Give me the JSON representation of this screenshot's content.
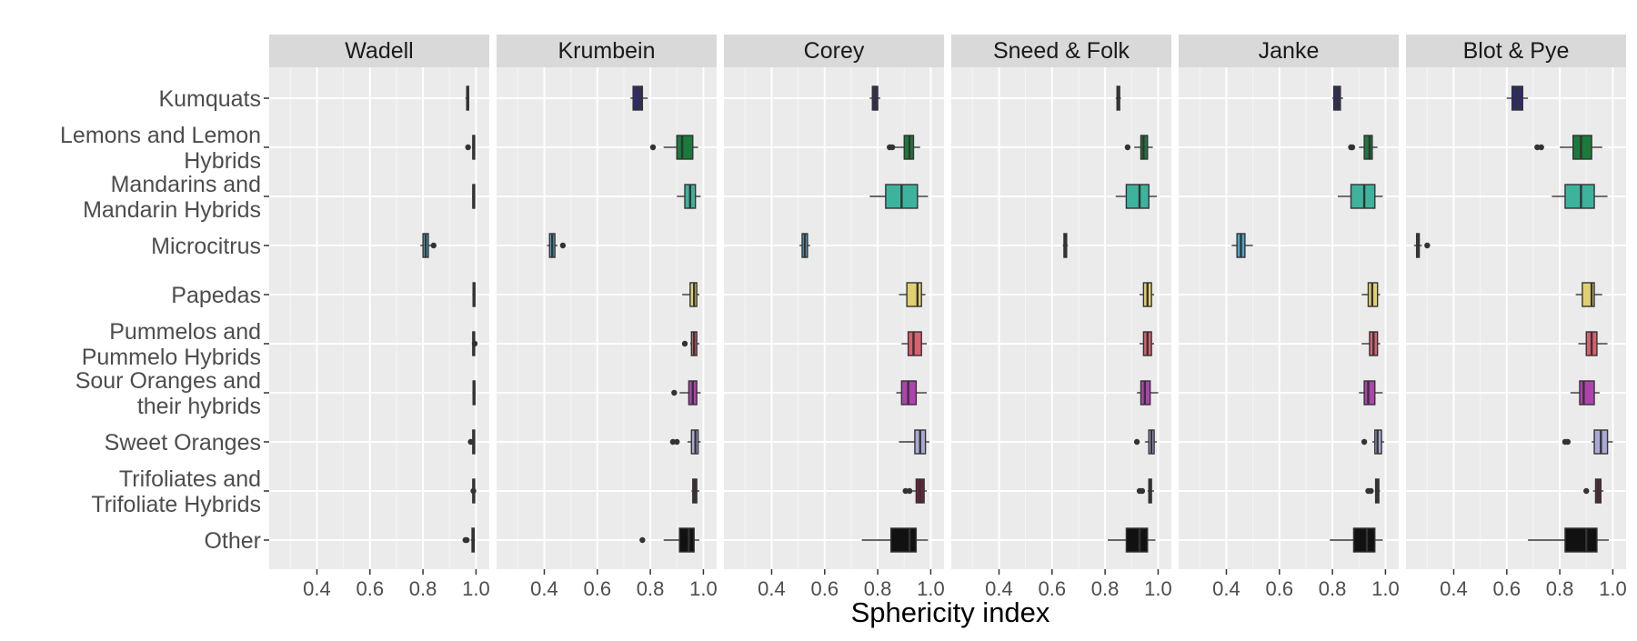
{
  "chart_data": {
    "type": "boxplot",
    "xlabel": "Sphericity index",
    "ylabel": "",
    "xlim": [
      0.22,
      1.05
    ],
    "x_ticks": [
      0.4,
      0.6,
      0.8,
      1.0
    ],
    "x_tick_labels": [
      "0.4",
      "0.6",
      "0.8",
      "1.0"
    ],
    "grid": true,
    "legend": "none",
    "facets": [
      "Wadell",
      "Krumbein",
      "Corey",
      "Sneed & Folk",
      "Janke",
      "Blot & Pye"
    ],
    "categories": [
      "Kumquats",
      "Lemons and Lemon\nHybrids",
      "Mandarins and\nMandarin Hybrids",
      "Microcitrus",
      "Papedas",
      "Pummelos and\nPummelo Hybrids",
      "Sour Oranges and\ntheir hybrids",
      "Sweet Oranges",
      "Trifoliates and\nTrifoliate Hybrids",
      "Other"
    ],
    "category_colors": [
      "#2d2b6b",
      "#1a7a3a",
      "#3db39e",
      "#4ea6c4",
      "#e2d070",
      "#d9606e",
      "#b042b0",
      "#a9a9d6",
      "#6e1f3c",
      "#111111"
    ],
    "panels": [
      {
        "name": "Wadell",
        "boxes": [
          {
            "min": 0.96,
            "q1": 0.965,
            "median": 0.968,
            "q3": 0.972,
            "max": 0.975,
            "outliers": []
          },
          {
            "min": 0.985,
            "q1": 0.988,
            "median": 0.99,
            "q3": 0.993,
            "max": 0.996,
            "outliers": [
              0.97
            ]
          },
          {
            "min": 0.985,
            "q1": 0.988,
            "median": 0.99,
            "q3": 0.993,
            "max": 0.996,
            "outliers": []
          },
          {
            "min": 0.79,
            "q1": 0.8,
            "median": 0.81,
            "q3": 0.82,
            "max": 0.83,
            "outliers": [
              0.84
            ]
          },
          {
            "min": 0.986,
            "q1": 0.989,
            "median": 0.991,
            "q3": 0.993,
            "max": 0.995,
            "outliers": []
          },
          {
            "min": 0.985,
            "q1": 0.988,
            "median": 0.99,
            "q3": 0.993,
            "max": 0.996,
            "outliers": [
              0.995
            ]
          },
          {
            "min": 0.986,
            "q1": 0.989,
            "median": 0.991,
            "q3": 0.993,
            "max": 0.995,
            "outliers": []
          },
          {
            "min": 0.985,
            "q1": 0.988,
            "median": 0.99,
            "q3": 0.993,
            "max": 0.996,
            "outliers": [
              0.98
            ]
          },
          {
            "min": 0.985,
            "q1": 0.988,
            "median": 0.99,
            "q3": 0.993,
            "max": 0.996,
            "outliers": [
              0.99
            ]
          },
          {
            "min": 0.98,
            "q1": 0.985,
            "median": 0.99,
            "q3": 0.993,
            "max": 0.996,
            "outliers": [
              0.96,
              0.965
            ]
          }
        ]
      },
      {
        "name": "Krumbein",
        "boxes": [
          {
            "min": 0.725,
            "q1": 0.735,
            "median": 0.76,
            "q3": 0.77,
            "max": 0.79,
            "outliers": []
          },
          {
            "min": 0.85,
            "q1": 0.9,
            "median": 0.92,
            "q3": 0.96,
            "max": 0.98,
            "outliers": [
              0.81
            ]
          },
          {
            "min": 0.9,
            "q1": 0.93,
            "median": 0.95,
            "q3": 0.97,
            "max": 0.99,
            "outliers": []
          },
          {
            "min": 0.41,
            "q1": 0.42,
            "median": 0.43,
            "q3": 0.44,
            "max": 0.45,
            "outliers": [
              0.47
            ]
          },
          {
            "min": 0.92,
            "q1": 0.95,
            "median": 0.965,
            "q3": 0.975,
            "max": 0.985,
            "outliers": []
          },
          {
            "min": 0.95,
            "q1": 0.955,
            "median": 0.965,
            "q3": 0.975,
            "max": 0.985,
            "outliers": [
              0.93
            ]
          },
          {
            "min": 0.91,
            "q1": 0.945,
            "median": 0.96,
            "q3": 0.975,
            "max": 0.99,
            "outliers": [
              0.89
            ]
          },
          {
            "min": 0.94,
            "q1": 0.955,
            "median": 0.97,
            "q3": 0.98,
            "max": 0.99,
            "outliers": [
              0.885,
              0.9
            ]
          },
          {
            "min": 0.955,
            "q1": 0.96,
            "median": 0.968,
            "q3": 0.975,
            "max": 0.985,
            "outliers": []
          },
          {
            "min": 0.85,
            "q1": 0.91,
            "median": 0.945,
            "q3": 0.965,
            "max": 0.985,
            "outliers": [
              0.77
            ]
          }
        ]
      },
      {
        "name": "Corey",
        "boxes": [
          {
            "min": 0.77,
            "q1": 0.78,
            "median": 0.79,
            "q3": 0.8,
            "max": 0.81,
            "outliers": []
          },
          {
            "min": 0.86,
            "q1": 0.9,
            "median": 0.92,
            "q3": 0.935,
            "max": 0.96,
            "outliers": [
              0.845,
              0.855
            ]
          },
          {
            "min": 0.77,
            "q1": 0.83,
            "median": 0.89,
            "q3": 0.95,
            "max": 0.99,
            "outliers": []
          },
          {
            "min": 0.505,
            "q1": 0.515,
            "median": 0.525,
            "q3": 0.535,
            "max": 0.545,
            "outliers": []
          },
          {
            "min": 0.88,
            "q1": 0.91,
            "median": 0.95,
            "q3": 0.965,
            "max": 0.98,
            "outliers": []
          },
          {
            "min": 0.89,
            "q1": 0.915,
            "median": 0.935,
            "q3": 0.965,
            "max": 0.985,
            "outliers": []
          },
          {
            "min": 0.87,
            "q1": 0.89,
            "median": 0.915,
            "q3": 0.945,
            "max": 0.985,
            "outliers": []
          },
          {
            "min": 0.88,
            "q1": 0.94,
            "median": 0.96,
            "q3": 0.98,
            "max": 0.995,
            "outliers": []
          },
          {
            "min": 0.93,
            "q1": 0.945,
            "median": 0.96,
            "q3": 0.975,
            "max": 0.985,
            "outliers": [
              0.905,
              0.92
            ]
          },
          {
            "min": 0.74,
            "q1": 0.85,
            "median": 0.92,
            "q3": 0.945,
            "max": 0.99,
            "outliers": []
          }
        ]
      },
      {
        "name": "Sneed & Folk",
        "boxes": [
          {
            "min": 0.84,
            "q1": 0.845,
            "median": 0.85,
            "q3": 0.855,
            "max": 0.86,
            "outliers": []
          },
          {
            "min": 0.91,
            "q1": 0.935,
            "median": 0.945,
            "q3": 0.96,
            "max": 0.98,
            "outliers": [
              0.885
            ]
          },
          {
            "min": 0.84,
            "q1": 0.88,
            "median": 0.93,
            "q3": 0.965,
            "max": 0.995,
            "outliers": []
          },
          {
            "min": 0.64,
            "q1": 0.645,
            "median": 0.65,
            "q3": 0.655,
            "max": 0.66,
            "outliers": []
          },
          {
            "min": 0.93,
            "q1": 0.945,
            "median": 0.96,
            "q3": 0.975,
            "max": 0.985,
            "outliers": []
          },
          {
            "min": 0.93,
            "q1": 0.945,
            "median": 0.96,
            "q3": 0.975,
            "max": 0.985,
            "outliers": []
          },
          {
            "min": 0.92,
            "q1": 0.935,
            "median": 0.95,
            "q3": 0.97,
            "max": 1.0,
            "outliers": []
          },
          {
            "min": 0.95,
            "q1": 0.965,
            "median": 0.975,
            "q3": 0.985,
            "max": 0.995,
            "outliers": [
              0.92
            ]
          },
          {
            "min": 0.96,
            "q1": 0.965,
            "median": 0.97,
            "q3": 0.975,
            "max": 0.985,
            "outliers": [
              0.93,
              0.94
            ]
          },
          {
            "min": 0.81,
            "q1": 0.88,
            "median": 0.93,
            "q3": 0.96,
            "max": 0.99,
            "outliers": []
          }
        ]
      },
      {
        "name": "Janke",
        "boxes": [
          {
            "min": 0.8,
            "q1": 0.805,
            "median": 0.82,
            "q3": 0.83,
            "max": 0.84,
            "outliers": []
          },
          {
            "min": 0.9,
            "q1": 0.92,
            "median": 0.94,
            "q3": 0.95,
            "max": 0.97,
            "outliers": [
              0.87,
              0.875
            ]
          },
          {
            "min": 0.82,
            "q1": 0.87,
            "median": 0.92,
            "q3": 0.96,
            "max": 0.99,
            "outliers": []
          },
          {
            "min": 0.42,
            "q1": 0.44,
            "median": 0.455,
            "q3": 0.47,
            "max": 0.5,
            "outliers": []
          },
          {
            "min": 0.91,
            "q1": 0.935,
            "median": 0.95,
            "q3": 0.97,
            "max": 0.98,
            "outliers": []
          },
          {
            "min": 0.91,
            "q1": 0.94,
            "median": 0.955,
            "q3": 0.97,
            "max": 0.98,
            "outliers": []
          },
          {
            "min": 0.9,
            "q1": 0.92,
            "median": 0.935,
            "q3": 0.96,
            "max": 0.99,
            "outliers": []
          },
          {
            "min": 0.95,
            "q1": 0.96,
            "median": 0.97,
            "q3": 0.985,
            "max": 0.995,
            "outliers": [
              0.92
            ]
          },
          {
            "min": 0.96,
            "q1": 0.963,
            "median": 0.968,
            "q3": 0.975,
            "max": 0.98,
            "outliers": [
              0.935,
              0.945
            ]
          },
          {
            "min": 0.79,
            "q1": 0.88,
            "median": 0.93,
            "q3": 0.96,
            "max": 0.99,
            "outliers": []
          }
        ]
      },
      {
        "name": "Blot & Pye",
        "boxes": [
          {
            "min": 0.6,
            "q1": 0.62,
            "median": 0.64,
            "q3": 0.66,
            "max": 0.68,
            "outliers": []
          },
          {
            "min": 0.8,
            "q1": 0.85,
            "median": 0.88,
            "q3": 0.92,
            "max": 0.96,
            "outliers": [
              0.715,
              0.73
            ]
          },
          {
            "min": 0.77,
            "q1": 0.82,
            "median": 0.88,
            "q3": 0.93,
            "max": 0.98,
            "outliers": []
          },
          {
            "min": 0.25,
            "q1": 0.26,
            "median": 0.265,
            "q3": 0.27,
            "max": 0.28,
            "outliers": [
              0.3
            ]
          },
          {
            "min": 0.86,
            "q1": 0.885,
            "median": 0.92,
            "q3": 0.93,
            "max": 0.96,
            "outliers": []
          },
          {
            "min": 0.87,
            "q1": 0.9,
            "median": 0.92,
            "q3": 0.94,
            "max": 0.98,
            "outliers": []
          },
          {
            "min": 0.84,
            "q1": 0.875,
            "median": 0.89,
            "q3": 0.93,
            "max": 0.95,
            "outliers": []
          },
          {
            "min": 0.92,
            "q1": 0.93,
            "median": 0.955,
            "q3": 0.98,
            "max": 1.0,
            "outliers": [
              0.82,
              0.83
            ]
          },
          {
            "min": 0.925,
            "q1": 0.935,
            "median": 0.945,
            "q3": 0.955,
            "max": 0.965,
            "outliers": [
              0.9
            ]
          },
          {
            "min": 0.68,
            "q1": 0.82,
            "median": 0.9,
            "q3": 0.94,
            "max": 0.985,
            "outliers": []
          }
        ]
      }
    ]
  }
}
